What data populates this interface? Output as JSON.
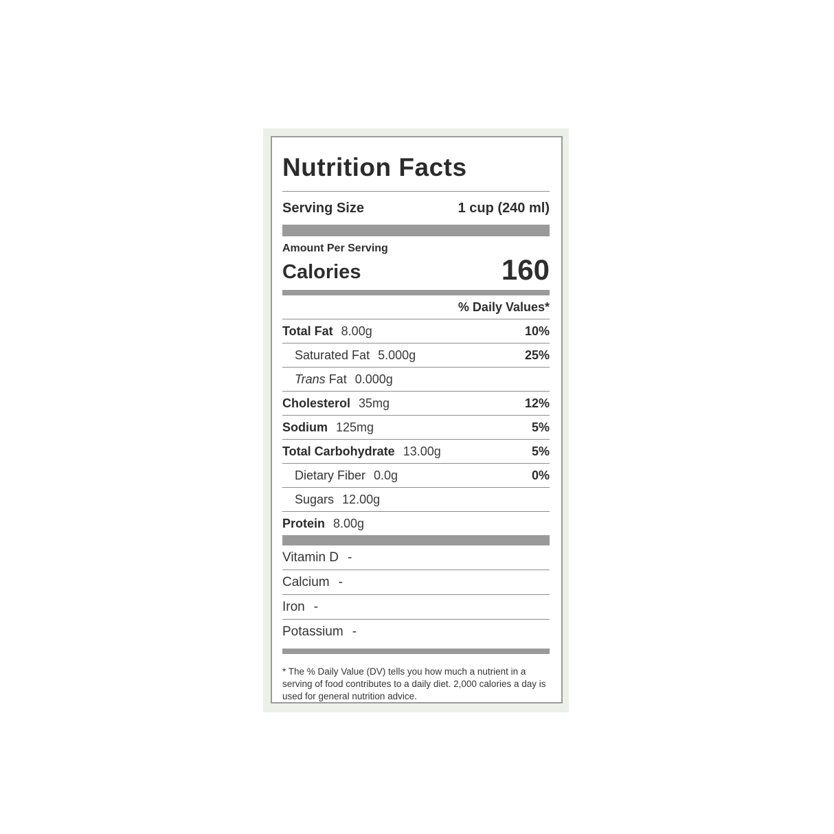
{
  "label": {
    "title": "Nutrition Facts",
    "serving": {
      "label": "Serving Size",
      "value": "1 cup (240 ml)"
    },
    "amount_per_serving": "Amount Per Serving",
    "calories": {
      "label": "Calories",
      "value": "160"
    },
    "daily_values_header": "% Daily Values*",
    "nutrients": [
      {
        "name": "Total Fat",
        "amount": "8.00g",
        "dv": "10%"
      },
      {
        "name": "Saturated Fat",
        "amount": "5.000g",
        "dv": "25%"
      },
      {
        "name_italic": "Trans",
        "name_rest": " Fat",
        "amount": "0.000g",
        "dv": ""
      },
      {
        "name": "Cholesterol",
        "amount": "35mg",
        "dv": "12%"
      },
      {
        "name": "Sodium",
        "amount": "125mg",
        "dv": "5%"
      },
      {
        "name": "Total Carbohydrate",
        "amount": "13.00g",
        "dv": "5%"
      },
      {
        "name": "Dietary Fiber",
        "amount": "0.0g",
        "dv": "0%"
      },
      {
        "name": "Sugars",
        "amount": "12.00g",
        "dv": ""
      },
      {
        "name": "Protein",
        "amount": "8.00g",
        "dv": ""
      }
    ],
    "vitamins": [
      {
        "name": "Vitamin D",
        "value": "-"
      },
      {
        "name": "Calcium",
        "value": "-"
      },
      {
        "name": "Iron",
        "value": "-"
      },
      {
        "name": "Potassium",
        "value": "-"
      }
    ],
    "footnote": "* The % Daily Value (DV) tells you how much a nutrient in a serving of food contributes to a daily diet. 2,000 calories a day is used for general nutrition advice.",
    "colors": {
      "card_background": "#edf0e8",
      "box_border": "#9b9b9b",
      "separator_bar": "#9a9a9a",
      "divider_line": "#8c8c8c",
      "text": "#2b2b2b"
    }
  }
}
